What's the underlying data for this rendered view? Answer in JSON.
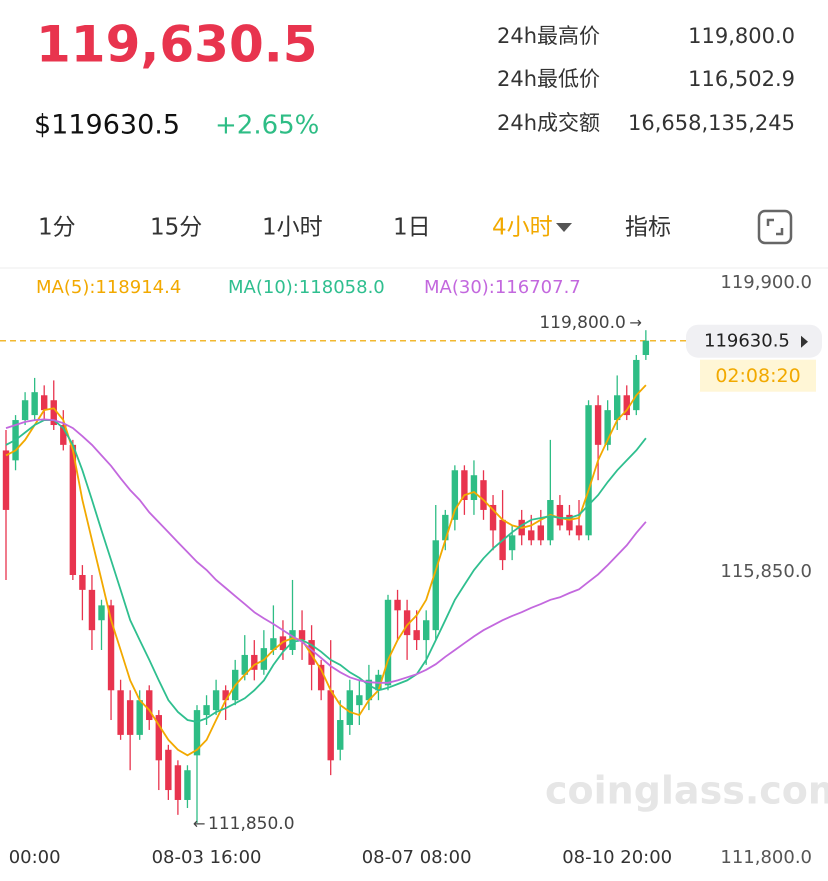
{
  "header": {
    "price": "119,630.5",
    "usd_price": "$119630.5",
    "change": "+2.65%",
    "stats": [
      {
        "label": "24h最高价",
        "value": "119,800.0"
      },
      {
        "label": "24h最低价",
        "value": "116,502.9"
      },
      {
        "label": "24h成交额",
        "value": "16,658,135,245"
      }
    ]
  },
  "tabs": [
    "1分",
    "15分",
    "1小时",
    "1日",
    "4小时",
    "指标"
  ],
  "watermark": "coinglass.com",
  "chart_data": {
    "type": "candlestick",
    "categories": [
      null,
      null,
      null,
      "00:00",
      null,
      null,
      null,
      null,
      null,
      null,
      null,
      null,
      null,
      null,
      null,
      null,
      null,
      null,
      null,
      null,
      null,
      "08-03 16:00",
      null,
      null,
      null,
      null,
      null,
      null,
      null,
      null,
      null,
      null,
      null,
      null,
      null,
      null,
      null,
      null,
      null,
      null,
      null,
      null,
      null,
      "08-07 08:00",
      null,
      null,
      null,
      null,
      null,
      null,
      null,
      null,
      null,
      null,
      null,
      null,
      null,
      null,
      null,
      null,
      null,
      null,
      null,
      null,
      "08-10 20:00",
      null,
      null,
      null
    ],
    "open": [
      117860,
      117700,
      118350,
      118430,
      118750,
      118670,
      118270,
      117950,
      115850,
      115610,
      115120,
      115360,
      113990,
      113830,
      113270,
      113990,
      113590,
      113030,
      112780,
      112220,
      112940,
      113590,
      113670,
      113990,
      113830,
      114240,
      114560,
      114320,
      114640,
      114860,
      114640,
      114960,
      114800,
      114400,
      113990,
      113030,
      113430,
      113750,
      113830,
      113990,
      114070,
      115450,
      115280,
      114960,
      114800,
      114960,
      116410,
      116740,
      117540,
      117060,
      117380,
      116980,
      116740,
      116250,
      116740,
      116570,
      116650,
      116410,
      116980,
      116820,
      116650,
      116490,
      118590,
      117950,
      118350,
      118750,
      118510,
      119400
    ],
    "high": [
      118190,
      118430,
      118800,
      119030,
      118910,
      118990,
      118510,
      118030,
      116010,
      115850,
      115450,
      115450,
      114160,
      113990,
      113990,
      114070,
      113670,
      113110,
      112860,
      112780,
      113750,
      113910,
      114160,
      114070,
      114480,
      114880,
      114800,
      114960,
      115360,
      115120,
      115770,
      115280,
      115040,
      114480,
      114800,
      113830,
      114160,
      114160,
      114400,
      114320,
      115530,
      115610,
      115450,
      115280,
      115280,
      116980,
      116900,
      117620,
      117620,
      117700,
      117540,
      117140,
      117220,
      116650,
      116900,
      116820,
      116900,
      118030,
      117140,
      116980,
      117060,
      118670,
      118750,
      118670,
      119070,
      118910,
      119400,
      119800
    ],
    "low": [
      115770,
      117540,
      118270,
      118350,
      118350,
      118190,
      117860,
      115770,
      115120,
      114640,
      114640,
      113510,
      113190,
      112700,
      113190,
      113350,
      112380,
      112220,
      111980,
      112090,
      111850,
      113430,
      113590,
      113510,
      113750,
      114150,
      114150,
      114240,
      114560,
      114480,
      114560,
      114480,
      113990,
      113830,
      112620,
      112860,
      113270,
      113430,
      113670,
      113830,
      113990,
      114800,
      114480,
      114640,
      114400,
      114800,
      116250,
      116570,
      116820,
      116820,
      116740,
      116250,
      115930,
      116090,
      116330,
      116330,
      116330,
      116330,
      116570,
      116490,
      116410,
      116410,
      117380,
      117860,
      118190,
      118350,
      118430,
      119320
    ],
    "close": [
      116900,
      118350,
      118670,
      118800,
      118510,
      118270,
      117950,
      115850,
      115610,
      114960,
      115360,
      113990,
      113270,
      113270,
      113830,
      113510,
      112860,
      112380,
      112220,
      112700,
      113670,
      113750,
      113990,
      113830,
      114320,
      114560,
      114320,
      114670,
      114830,
      114640,
      114960,
      114800,
      114400,
      113990,
      112860,
      113510,
      113990,
      113910,
      114160,
      114240,
      115450,
      115280,
      114880,
      114800,
      115120,
      116410,
      116820,
      117540,
      117060,
      117460,
      116900,
      116570,
      116090,
      116490,
      116490,
      116410,
      116410,
      117060,
      116650,
      116570,
      116490,
      118590,
      117950,
      118510,
      118750,
      118430,
      119320,
      119630.5
    ],
    "up_color": "#2ebd85",
    "down_color": "#e8344e",
    "series": [
      {
        "name": "MA(5):118914.4",
        "color": "#f2a900",
        "values": [
          117780,
          117860,
          118030,
          118270,
          118510,
          118540,
          118350,
          117860,
          117060,
          116410,
          115770,
          115120,
          114640,
          114150,
          113830,
          113670,
          113430,
          113190,
          113030,
          112940,
          113030,
          113190,
          113510,
          113830,
          114070,
          114240,
          114400,
          114480,
          114640,
          114770,
          114830,
          114800,
          114560,
          114320,
          113990,
          113750,
          113640,
          113590,
          113830,
          113990,
          114480,
          114800,
          115040,
          115200,
          115450,
          115930,
          116410,
          116900,
          117140,
          117190,
          117060,
          116900,
          116740,
          116650,
          116610,
          116650,
          116740,
          116820,
          116770,
          116740,
          116770,
          117220,
          117700,
          118030,
          118350,
          118510,
          118750,
          118914.4
        ]
      },
      {
        "name": "MA(10):118058.0",
        "color": "#2fbf8f",
        "values": [
          117950,
          118030,
          118150,
          118270,
          118350,
          118350,
          118220,
          117950,
          117540,
          117060,
          116570,
          116090,
          115610,
          115120,
          114800,
          114480,
          114150,
          113830,
          113640,
          113510,
          113480,
          113540,
          113640,
          113700,
          113780,
          113860,
          113990,
          114150,
          114400,
          114610,
          114770,
          114800,
          114720,
          114610,
          114480,
          114400,
          114280,
          114190,
          114070,
          113990,
          114030,
          114090,
          114150,
          114250,
          114480,
          114800,
          115120,
          115450,
          115690,
          115930,
          116120,
          116280,
          116410,
          116540,
          116650,
          116740,
          116770,
          116800,
          116770,
          116770,
          116820,
          116980,
          117140,
          117350,
          117540,
          117700,
          117860,
          118058
        ]
      },
      {
        "name": "MA(30):116707.7",
        "color": "#c368de",
        "values": [
          118220,
          118270,
          118320,
          118350,
          118360,
          118350,
          118300,
          118220,
          118090,
          117950,
          117780,
          117610,
          117410,
          117220,
          117060,
          116860,
          116700,
          116540,
          116380,
          116220,
          116060,
          115930,
          115770,
          115640,
          115510,
          115380,
          115250,
          115150,
          115060,
          114960,
          114860,
          114770,
          114640,
          114510,
          114380,
          114280,
          114200,
          114150,
          114120,
          114110,
          114110,
          114150,
          114200,
          114250,
          114320,
          114410,
          114530,
          114640,
          114750,
          114860,
          114960,
          115040,
          115120,
          115190,
          115250,
          115320,
          115380,
          115450,
          115490,
          115560,
          115620,
          115740,
          115860,
          116010,
          116170,
          116330,
          116530,
          116707.7
        ]
      }
    ],
    "ylim": [
      111800,
      119900
    ],
    "yticks": [
      {
        "value": 111800,
        "label": "111,800.0"
      },
      {
        "value": 115850,
        "label": "115,850.0"
      },
      {
        "value": 119900,
        "label": "119,900.0"
      }
    ],
    "grid": false,
    "annotations": [
      {
        "value": 119800,
        "label": "119,800.0"
      },
      {
        "value": 111850,
        "label": "111,850.0"
      }
    ],
    "current_price": 119630.5,
    "countdown": "02:08:20"
  }
}
